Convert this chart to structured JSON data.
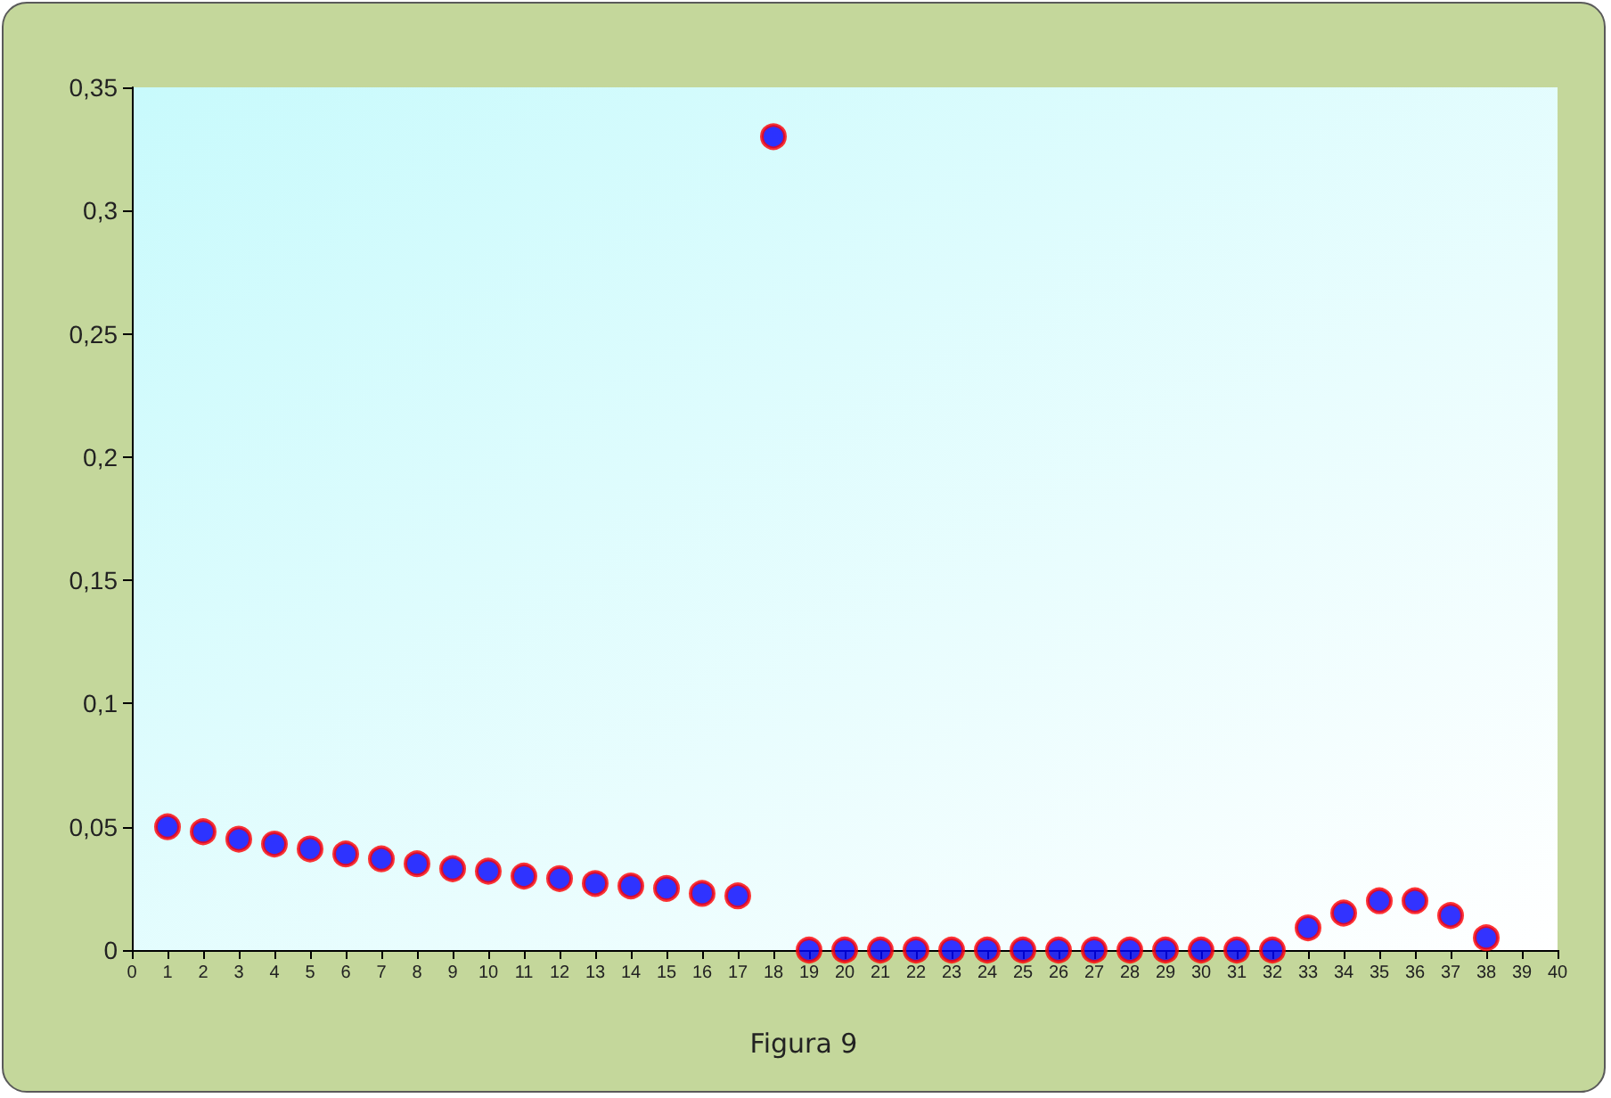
{
  "chart_data": {
    "type": "scatter",
    "title": "Figura 9",
    "x": [
      1,
      2,
      3,
      4,
      5,
      6,
      7,
      8,
      9,
      10,
      11,
      12,
      13,
      14,
      15,
      16,
      17,
      18,
      19,
      20,
      21,
      22,
      23,
      24,
      25,
      26,
      27,
      28,
      29,
      30,
      31,
      32,
      33,
      34,
      35,
      36,
      37,
      38
    ],
    "series": [
      {
        "color": "#0000ff",
        "values": [
          0.05,
          0.048,
          0.045,
          0.043,
          0.041,
          0.039,
          0.037,
          0.035,
          0.033,
          0.032,
          0.03,
          0.029,
          0.027,
          0.026,
          0.025,
          0.023,
          0.022,
          0.33,
          0,
          0,
          0,
          0,
          0,
          0,
          0,
          0,
          0,
          0,
          0,
          0,
          0,
          0,
          0.009,
          0.015,
          0.02,
          0.02,
          0.014,
          0.005
        ]
      }
    ],
    "xlim": [
      0,
      40
    ],
    "xticks": [
      0,
      1,
      2,
      3,
      4,
      5,
      6,
      7,
      8,
      9,
      10,
      11,
      12,
      13,
      14,
      15,
      16,
      17,
      18,
      19,
      20,
      21,
      22,
      23,
      24,
      25,
      26,
      27,
      28,
      29,
      30,
      31,
      32,
      33,
      34,
      35,
      36,
      37,
      38,
      39,
      40
    ],
    "ylim": [
      0,
      0.35
    ],
    "yticks": [
      0,
      {
        "value": 0.05,
        "label": "0,05"
      },
      {
        "value": 0.1,
        "label": "0,1"
      },
      {
        "value": 0.15,
        "label": "0,15"
      },
      {
        "value": 0.2,
        "label": "0,2"
      },
      {
        "value": 0.25,
        "label": "0,25"
      },
      {
        "value": 0.3,
        "label": "0,3"
      },
      {
        "value": 0.35,
        "label": "0,35"
      }
    ],
    "grid": false,
    "marker": "circle"
  }
}
